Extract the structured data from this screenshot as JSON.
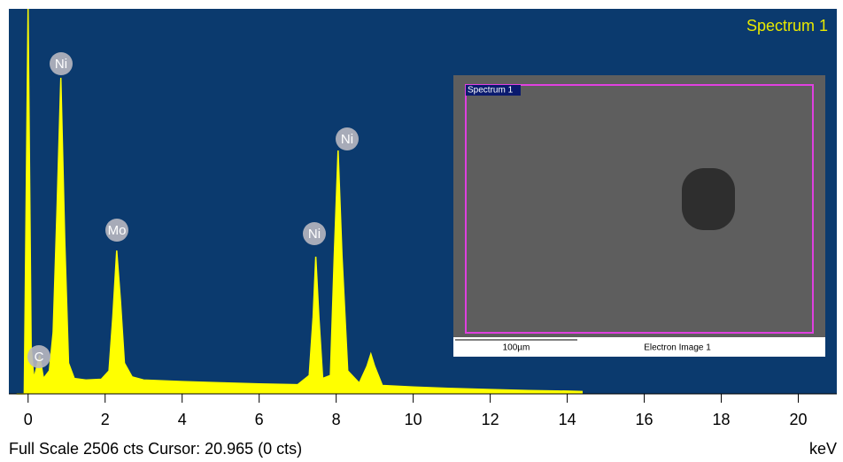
{
  "chart_data": {
    "type": "spectrum",
    "title": "Spectrum 1",
    "x_unit": "keV",
    "footer": "Full Scale 2506 cts Cursor: 20.965  (0 cts)",
    "x": [
      -0.3,
      -0.1,
      0.0,
      0.08,
      0.15,
      0.25,
      0.3,
      0.4,
      0.55,
      0.65,
      0.75,
      0.85,
      0.95,
      1.05,
      1.2,
      1.5,
      1.9,
      2.1,
      2.2,
      2.3,
      2.4,
      2.5,
      2.7,
      3.0,
      4.0,
      5.0,
      6.0,
      7.0,
      7.3,
      7.4,
      7.47,
      7.55,
      7.65,
      7.85,
      7.95,
      8.05,
      8.15,
      8.3,
      8.6,
      8.8,
      8.9,
      9.0,
      9.2,
      10.0,
      11.0,
      12.0,
      13.0,
      14.0,
      14.4
    ],
    "series": [
      {
        "name": "Spectrum 1",
        "color": "#ffff00",
        "values": [
          0,
          0,
          2506,
          300,
          100,
          200,
          250,
          100,
          150,
          400,
          1200,
          2057,
          1000,
          200,
          100,
          90,
          95,
          150,
          500,
          933,
          600,
          200,
          110,
          90,
          80,
          72,
          65,
          60,
          120,
          500,
          893,
          500,
          100,
          120,
          900,
          1584,
          900,
          150,
          70,
          180,
          259,
          180,
          55,
          45,
          35,
          28,
          22,
          18,
          15
        ]
      }
    ],
    "xlim": [
      -0.5,
      21
    ],
    "ylim": [
      0,
      2506
    ],
    "xticks": [
      0,
      2,
      4,
      6,
      8,
      10,
      12,
      14,
      16,
      18,
      20
    ],
    "peak_labels": [
      "C",
      "Ni",
      "Mo",
      "Ni",
      "Ni"
    ],
    "background": "#0b3a6e",
    "inset": {
      "label": "Spectrum 1",
      "scale_bar": "100µm",
      "caption": "Electron Image 1"
    }
  }
}
